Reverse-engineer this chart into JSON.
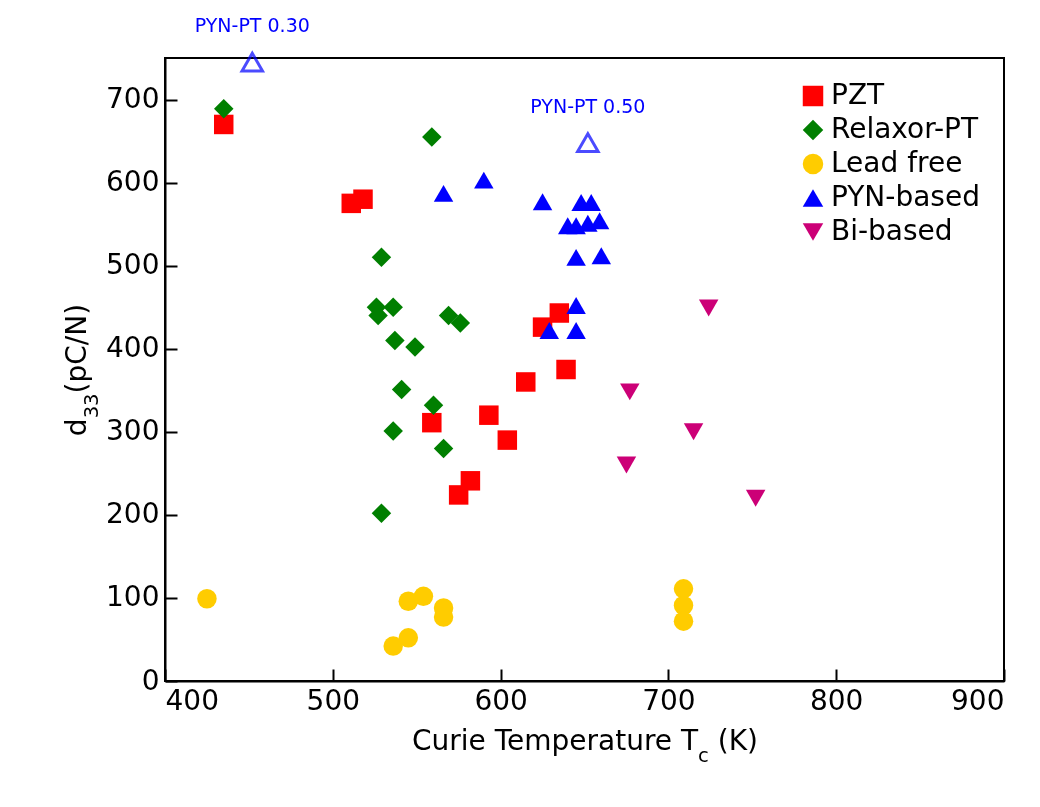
{
  "chart_data": {
    "type": "scatter",
    "xlabel": "Curie Temperature T$_{c}$ (K)",
    "ylabel": "d$_{33}$(pC/N)",
    "xlim": [
      400,
      900
    ],
    "xticks": [
      400,
      500,
      600,
      700,
      800,
      900
    ],
    "ylim": [
      0,
      750
    ],
    "yticks": [
      0,
      100,
      200,
      300,
      400,
      500,
      600,
      700
    ],
    "grid": false,
    "legend": "top right",
    "series": [
      {
        "name": "PZT",
        "color": "#ff0000",
        "marker": "square",
        "x": [
          435,
          511,
          518,
          559,
          593,
          604,
          582,
          575,
          615,
          639,
          635,
          625
        ],
        "values": [
          670,
          575,
          580,
          311,
          320,
          290,
          241,
          224,
          360,
          375,
          443,
          426
        ]
      },
      {
        "name": "Relaxor-PT",
        "color": "#007f00",
        "marker": "diamond",
        "x": [
          435,
          559,
          529,
          526,
          536,
          527,
          537,
          549,
          541,
          560,
          536,
          566,
          529,
          569,
          576
        ],
        "values": [
          689,
          655,
          510,
          450,
          450,
          440,
          410,
          402,
          351,
          332,
          301,
          280,
          202,
          440,
          431
        ]
      },
      {
        "name": "Lead free",
        "color": "#ffcc00",
        "marker": "circle",
        "x": [
          425,
          545,
          554,
          566,
          566,
          536,
          545,
          709,
          709,
          709
        ],
        "values": [
          99,
          96,
          102,
          88,
          77,
          42,
          52,
          111,
          91,
          72
        ]
      },
      {
        "name": "PYN-based",
        "color": "#0000ff",
        "marker": "triangle",
        "x": [
          566,
          590,
          625,
          648,
          654,
          640,
          645,
          652,
          659,
          645,
          660,
          645,
          629,
          645
        ],
        "values": [
          587,
          603,
          577,
          576,
          576,
          548,
          548,
          551,
          554,
          510,
          512,
          452,
          422,
          422
        ]
      },
      {
        "name": "Bi-based",
        "color": "#cc0077",
        "marker": "triangle-down",
        "x": [
          724,
          677,
          715,
          675,
          752
        ],
        "values": [
          449,
          348,
          300,
          260,
          220
        ]
      }
    ],
    "annotations": [
      {
        "text": "PYN-PT 0.30",
        "x": 452,
        "y": 745
      },
      {
        "text": "PYN-PT 0.50",
        "x": 652,
        "y": 648
      }
    ]
  }
}
